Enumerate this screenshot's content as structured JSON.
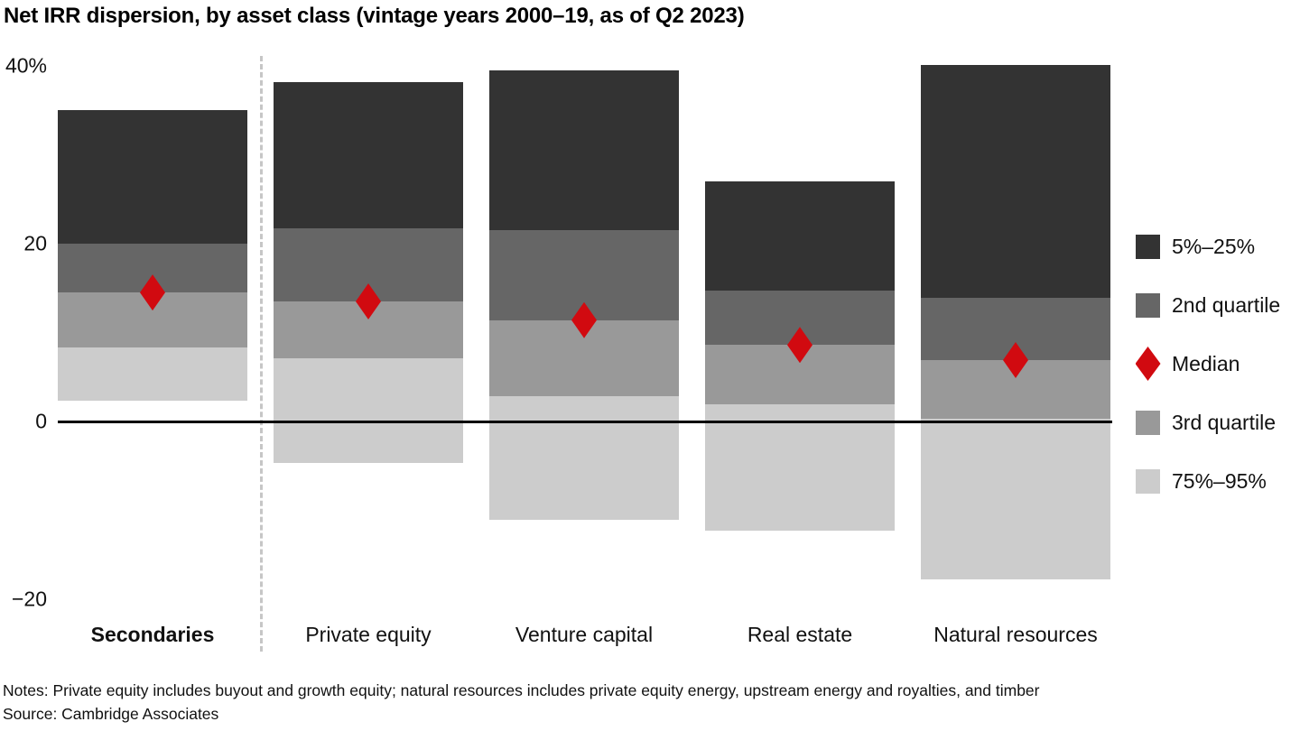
{
  "title": "Net IRR dispersion, by asset class (vintage years 2000–19, as of Q2 2023)",
  "notes": "Notes: Private equity includes buyout and growth equity; natural resources includes private equity energy, upstream energy and royalties, and timber",
  "source": "Source: Cambridge Associates",
  "colors": {
    "band_5_25": "#333333",
    "band_2nd_quartile": "#666666",
    "band_3rd_quartile": "#999999",
    "band_75_95": "#cccccc",
    "median": "#d10a10",
    "zero_line": "#000000",
    "divider": "#c6c6c6"
  },
  "y_axis": {
    "ticks": [
      {
        "label": "40%",
        "value": 40
      },
      {
        "label": "20",
        "value": 20
      },
      {
        "label": "0",
        "value": 0
      },
      {
        "label": "−20",
        "value": -20
      }
    ]
  },
  "legend": [
    {
      "shape": "square",
      "color_key": "band_5_25",
      "label": "5%–25%"
    },
    {
      "shape": "square",
      "color_key": "band_2nd_quartile",
      "label": "2nd quartile"
    },
    {
      "shape": "diamond",
      "color_key": "median",
      "label": "Median"
    },
    {
      "shape": "square",
      "color_key": "band_3rd_quartile",
      "label": "3rd quartile"
    },
    {
      "shape": "square",
      "color_key": "band_75_95",
      "label": "75%–95%"
    }
  ],
  "chart_data": {
    "type": "bar",
    "subtype": "floating-dispersion-bands",
    "title": "Net IRR dispersion, by asset class (vintage years 2000–19, as of Q2 2023)",
    "categories": [
      "Secondaries",
      "Private equity",
      "Venture capital",
      "Real estate",
      "Natural resources"
    ],
    "emphasized_category": "Secondaries",
    "separator_after_category": "Secondaries",
    "units": "% net IRR",
    "series": [
      {
        "name": "5th percentile (band top)",
        "values": [
          35.0,
          38.2,
          39.5,
          27.0,
          40.1
        ]
      },
      {
        "name": "25th percentile",
        "values": [
          20.0,
          21.7,
          21.5,
          14.7,
          13.9
        ]
      },
      {
        "name": "Median",
        "values": [
          14.5,
          13.5,
          11.4,
          8.6,
          6.9
        ]
      },
      {
        "name": "75th percentile",
        "values": [
          8.3,
          7.1,
          2.8,
          1.9,
          0.3
        ]
      },
      {
        "name": "95th percentile (band bottom)",
        "values": [
          2.3,
          -4.7,
          -11.1,
          -12.3,
          -17.8
        ]
      }
    ],
    "ylim": [
      -24,
      42
    ],
    "y_ticks": [
      40,
      20,
      0,
      -20
    ],
    "grid": false,
    "legend_position": "right"
  }
}
